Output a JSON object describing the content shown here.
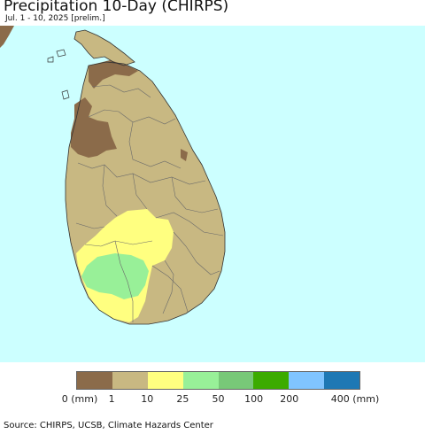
{
  "header": {
    "title": "Precipitation 10-Day (CHIRPS)",
    "subtitle": "Jul. 1 - 10, 2025 [prelim.]"
  },
  "map": {
    "region": "Sri Lanka",
    "colors": {
      "ocean": "#ccffff",
      "neighbor_land": "#8b6b4a",
      "dry": "#c8b882",
      "very_dry": "#8b6b4a",
      "moderate": "#ffff80",
      "wet": "#98f098"
    }
  },
  "legend": {
    "colors": [
      "#8b6b4a",
      "#c8b882",
      "#ffff80",
      "#98f098",
      "#78c878",
      "#3cab00",
      "#80c4ff",
      "#1e78b4"
    ],
    "labels": [
      "0 (mm)",
      "1",
      "10",
      "25",
      "50",
      "100",
      "200",
      "400 (mm)"
    ]
  },
  "footer": {
    "source": "Source: CHIRPS, UCSB, Climate Hazards Center"
  }
}
